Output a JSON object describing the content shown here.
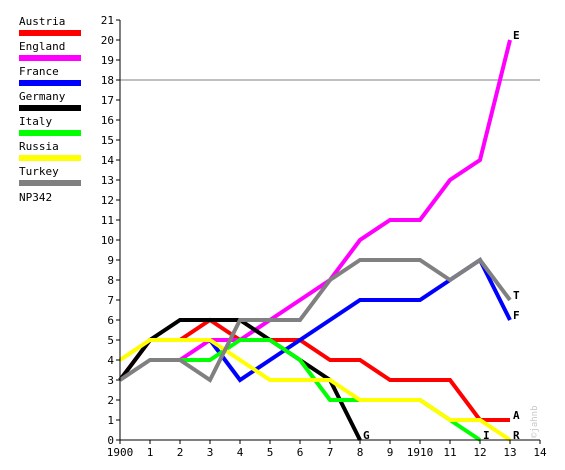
{
  "chart_data": {
    "type": "line",
    "x_tick_labels": [
      "1900",
      "1",
      "2",
      "3",
      "4",
      "5",
      "6",
      "7",
      "8",
      "9",
      "1910",
      "11",
      "12",
      "13",
      "14"
    ],
    "y_ticks": [
      0,
      1,
      2,
      3,
      4,
      5,
      6,
      7,
      8,
      9,
      10,
      11,
      12,
      13,
      14,
      15,
      16,
      17,
      18,
      19,
      20,
      21
    ],
    "xlim": [
      0,
      14
    ],
    "ylim": [
      0,
      21
    ],
    "reference_line_y": 18,
    "grid": false,
    "legend_position": "left",
    "series": [
      {
        "name": "Austria",
        "color": "#ff0000",
        "end_label": "A",
        "points": [
          [
            0,
            3
          ],
          [
            1,
            5
          ],
          [
            2,
            5
          ],
          [
            3,
            6
          ],
          [
            4,
            5
          ],
          [
            5,
            5
          ],
          [
            6,
            5
          ],
          [
            7,
            4
          ],
          [
            8,
            4
          ],
          [
            9,
            3
          ],
          [
            10,
            3
          ],
          [
            11,
            3
          ],
          [
            12,
            1
          ],
          [
            13,
            1
          ]
        ]
      },
      {
        "name": "England",
        "color": "#ff00ff",
        "end_label": "E",
        "points": [
          [
            2,
            4
          ],
          [
            3,
            5
          ],
          [
            4,
            5
          ],
          [
            5,
            6
          ],
          [
            6,
            7
          ],
          [
            7,
            8
          ],
          [
            8,
            10
          ],
          [
            9,
            11
          ],
          [
            10,
            11
          ],
          [
            11,
            13
          ],
          [
            12,
            14
          ],
          [
            13,
            20
          ]
        ]
      },
      {
        "name": "France",
        "color": "#0000ff",
        "end_label": "F",
        "points": [
          [
            3,
            5
          ],
          [
            4,
            3
          ],
          [
            5,
            4
          ],
          [
            6,
            5
          ],
          [
            7,
            6
          ],
          [
            8,
            7
          ],
          [
            9,
            7
          ],
          [
            10,
            7
          ],
          [
            11,
            8
          ],
          [
            12,
            9
          ],
          [
            13,
            6
          ]
        ]
      },
      {
        "name": "Germany",
        "color": "#000000",
        "end_label": "G",
        "points": [
          [
            0,
            3
          ],
          [
            1,
            5
          ],
          [
            2,
            6
          ],
          [
            3,
            6
          ],
          [
            4,
            6
          ],
          [
            5,
            5
          ],
          [
            6,
            4
          ],
          [
            7,
            3
          ],
          [
            8,
            0
          ]
        ]
      },
      {
        "name": "Italy",
        "color": "#00ff00",
        "end_label": "I",
        "points": [
          [
            2,
            4
          ],
          [
            3,
            4
          ],
          [
            4,
            5
          ],
          [
            5,
            5
          ],
          [
            6,
            4
          ],
          [
            7,
            2
          ],
          [
            8,
            2
          ],
          [
            9,
            2
          ],
          [
            10,
            2
          ],
          [
            11,
            1
          ],
          [
            12,
            0
          ]
        ]
      },
      {
        "name": "Russia",
        "color": "#ffff00",
        "end_label": "R",
        "points": [
          [
            0,
            4
          ],
          [
            1,
            5
          ],
          [
            2,
            5
          ],
          [
            3,
            5
          ],
          [
            4,
            4
          ],
          [
            5,
            3
          ],
          [
            6,
            3
          ],
          [
            7,
            3
          ],
          [
            8,
            2
          ],
          [
            9,
            2
          ],
          [
            10,
            2
          ],
          [
            11,
            1
          ],
          [
            12,
            1
          ],
          [
            13,
            0
          ]
        ]
      },
      {
        "name": "Turkey",
        "color": "#808080",
        "end_label": "T",
        "points": [
          [
            0,
            3
          ],
          [
            1,
            4
          ],
          [
            2,
            4
          ],
          [
            3,
            3
          ],
          [
            4,
            6
          ],
          [
            5,
            6
          ],
          [
            6,
            6
          ],
          [
            7,
            8
          ],
          [
            8,
            9
          ],
          [
            9,
            9
          ],
          [
            10,
            9
          ],
          [
            11,
            8
          ],
          [
            12,
            9
          ],
          [
            13,
            7
          ]
        ]
      }
    ],
    "legend_extra_text": "NP342",
    "watermark": "©jahnb"
  }
}
